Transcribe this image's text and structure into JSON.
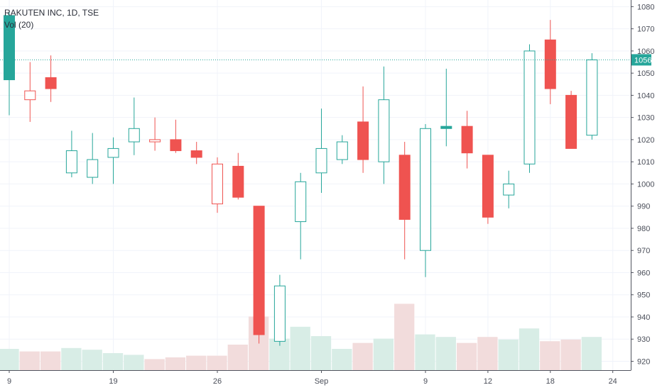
{
  "chart_data": {
    "type": "candlestick",
    "title": "RAKUTEN INC, 1D, TSE",
    "subtitle": "Vol (20)",
    "last_price_label": "1056",
    "last_price": 1056,
    "ylim": [
      916,
      1083
    ],
    "y_ticks": [
      920,
      930,
      940,
      950,
      960,
      970,
      980,
      990,
      1000,
      1010,
      1020,
      1030,
      1040,
      1050,
      1060,
      1070,
      1080
    ],
    "x_tick_labels": [
      "9",
      "19",
      "26",
      "Sep",
      "9",
      "12",
      "18",
      "24"
    ],
    "grid": true,
    "colors": {
      "up": "#26a69a",
      "down": "#ef5350",
      "volume_up": "#d8ede6",
      "volume_down": "#f2dcdc",
      "last_price_line": "#26a69a",
      "grid": "#f0f3fa",
      "axis_text": "#4a4e59"
    },
    "candles": [
      {
        "o": 1047,
        "h": 1078,
        "l": 1031,
        "c": 1076,
        "v": 0.25,
        "filled": true
      },
      {
        "o": 1042,
        "h": 1055,
        "l": 1028,
        "c": 1038,
        "v": 0.22,
        "filled": false
      },
      {
        "o": 1048,
        "h": 1058,
        "l": 1037,
        "c": 1043,
        "v": 0.22,
        "filled": true
      },
      {
        "o": 1005,
        "h": 1024,
        "l": 1003,
        "c": 1015,
        "v": 0.26,
        "filled": false
      },
      {
        "o": 1003,
        "h": 1023,
        "l": 1000,
        "c": 1011,
        "v": 0.24,
        "filled": false
      },
      {
        "o": 1012,
        "h": 1021,
        "l": 1000,
        "c": 1016,
        "v": 0.2,
        "filled": false
      },
      {
        "o": 1019,
        "h": 1039,
        "l": 1013,
        "c": 1025,
        "v": 0.18,
        "filled": false
      },
      {
        "o": 1020,
        "h": 1030,
        "l": 1015,
        "c": 1019,
        "v": 0.13,
        "filled": false
      },
      {
        "o": 1020,
        "h": 1029,
        "l": 1014,
        "c": 1015,
        "v": 0.15,
        "filled": true
      },
      {
        "o": 1015,
        "h": 1019,
        "l": 1009,
        "c": 1012,
        "v": 0.17,
        "filled": true
      },
      {
        "o": 1009,
        "h": 1012,
        "l": 987,
        "c": 991,
        "v": 0.17,
        "filled": false
      },
      {
        "o": 1008,
        "h": 1014,
        "l": 993,
        "c": 994,
        "v": 0.3,
        "filled": true
      },
      {
        "o": 990,
        "h": 990,
        "l": 928,
        "c": 932,
        "v": 0.63,
        "filled": true
      },
      {
        "o": 929,
        "h": 959,
        "l": 927,
        "c": 954,
        "v": 0.37,
        "filled": false
      },
      {
        "o": 983,
        "h": 1005,
        "l": 966,
        "c": 1001,
        "v": 0.51,
        "filled": false
      },
      {
        "o": 1005,
        "h": 1034,
        "l": 996,
        "c": 1016,
        "v": 0.4,
        "filled": false
      },
      {
        "o": 1011,
        "h": 1022,
        "l": 1009,
        "c": 1019,
        "v": 0.25,
        "filled": false
      },
      {
        "o": 1028,
        "h": 1044,
        "l": 1005,
        "c": 1011,
        "v": 0.32,
        "filled": true
      },
      {
        "o": 1010,
        "h": 1053,
        "l": 1000,
        "c": 1038,
        "v": 0.37,
        "filled": false
      },
      {
        "o": 1013,
        "h": 1019,
        "l": 966,
        "c": 984,
        "v": 0.78,
        "filled": true
      },
      {
        "o": 970,
        "h": 1027,
        "l": 958,
        "c": 1025,
        "v": 0.42,
        "filled": false
      },
      {
        "o": 1025,
        "h": 1052,
        "l": 1017,
        "c": 1026,
        "v": 0.39,
        "filled": true
      },
      {
        "o": 1026,
        "h": 1033,
        "l": 1007,
        "c": 1014,
        "v": 0.32,
        "filled": true
      },
      {
        "o": 1013,
        "h": 1013,
        "l": 982,
        "c": 985,
        "v": 0.39,
        "filled": true
      },
      {
        "o": 995,
        "h": 1006,
        "l": 989,
        "c": 1000,
        "v": 0.36,
        "filled": false
      },
      {
        "o": 1009,
        "h": 1063,
        "l": 1005,
        "c": 1060,
        "v": 0.49,
        "filled": false
      },
      {
        "o": 1065,
        "h": 1074,
        "l": 1036,
        "c": 1043,
        "v": 0.34,
        "filled": true
      },
      {
        "o": 1040,
        "h": 1042,
        "l": 1016,
        "c": 1016,
        "v": 0.36,
        "filled": true
      },
      {
        "o": 1022,
        "h": 1059,
        "l": 1020,
        "c": 1056,
        "v": 0.39,
        "filled": false
      }
    ]
  }
}
